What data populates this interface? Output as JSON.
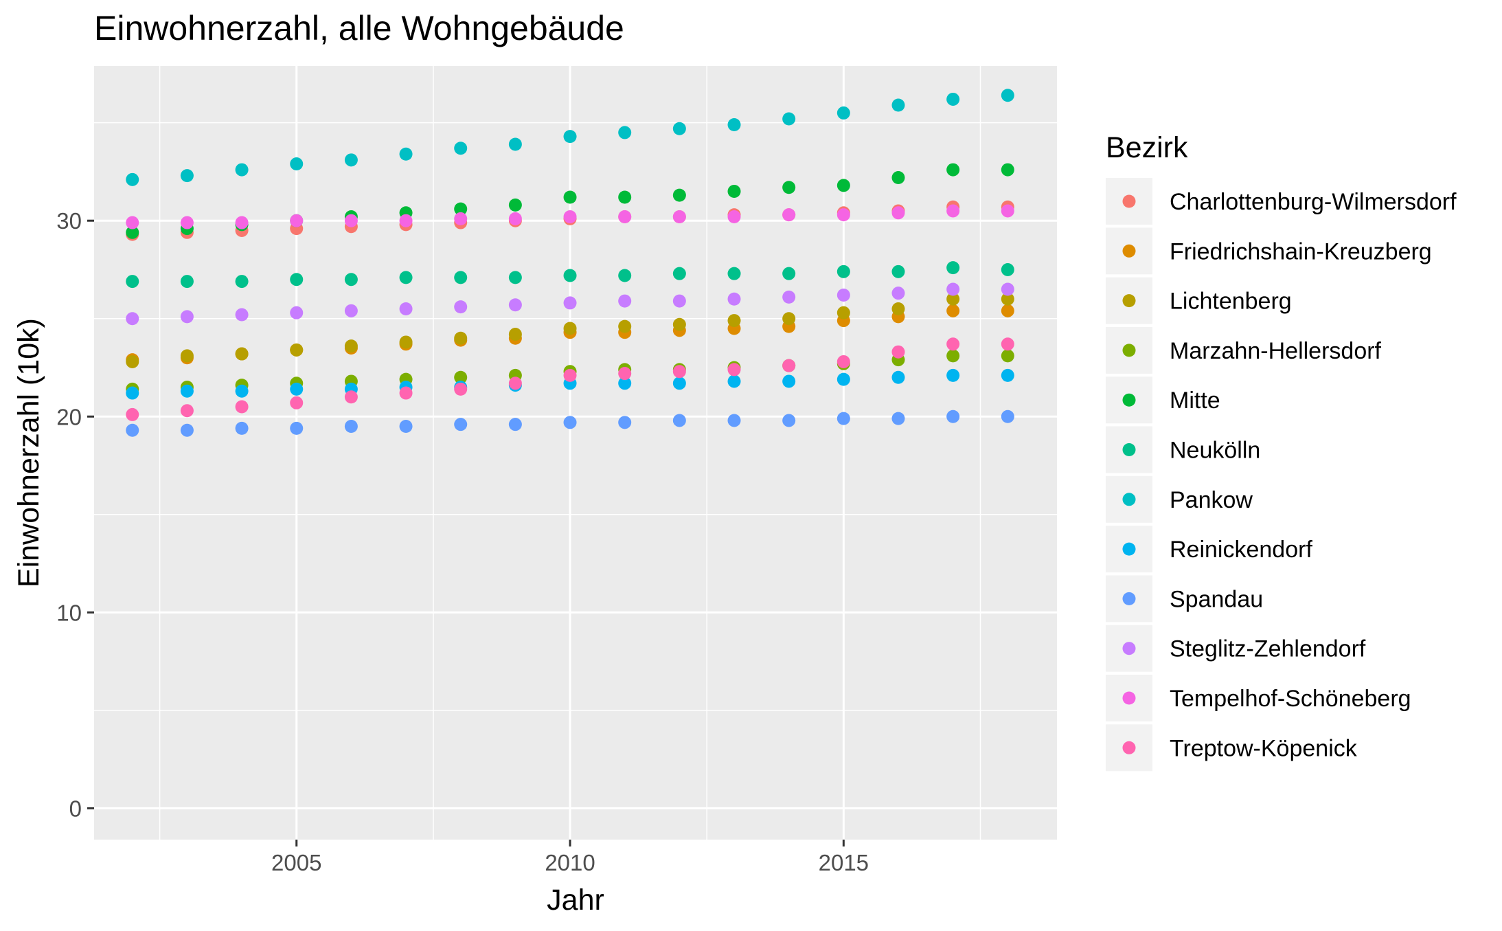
{
  "chart_data": {
    "type": "scatter",
    "title": "Einwohnerzahl, alle Wohngebäude",
    "xlabel": "Jahr",
    "ylabel": "Einwohnerzahl (10k)",
    "xlim": [
      2001.3,
      2018.9
    ],
    "ylim": [
      -1.6,
      37.9
    ],
    "x_major_ticks": [
      2005,
      2010,
      2015
    ],
    "x_minor_ticks": [
      2002.5,
      2007.5,
      2012.5,
      2017.5
    ],
    "y_major_ticks": [
      0,
      10,
      20,
      30
    ],
    "y_minor_ticks": [
      5,
      15,
      25,
      35
    ],
    "grid": true,
    "panel_background": "#EBEBEB",
    "legend": {
      "title": "Bezirk",
      "position": "right"
    },
    "x": [
      2002,
      2003,
      2004,
      2005,
      2006,
      2007,
      2008,
      2009,
      2010,
      2011,
      2012,
      2013,
      2014,
      2015,
      2016,
      2017,
      2018
    ],
    "series": [
      {
        "name": "Charlottenburg-Wilmersdorf",
        "color": "#F8766D",
        "values": [
          29.3,
          29.4,
          29.5,
          29.6,
          29.7,
          29.8,
          29.9,
          30.0,
          30.1,
          30.2,
          30.2,
          30.3,
          30.3,
          30.4,
          30.5,
          30.7,
          30.7
        ]
      },
      {
        "name": "Friedrichshain-Kreuzberg",
        "color": "#DE8C00",
        "values": [
          22.9,
          23.0,
          23.2,
          23.4,
          23.5,
          23.7,
          23.9,
          24.0,
          24.3,
          24.3,
          24.4,
          24.5,
          24.6,
          24.9,
          25.1,
          25.4,
          25.4
        ]
      },
      {
        "name": "Lichtenberg",
        "color": "#B79F00",
        "values": [
          22.8,
          23.1,
          23.2,
          23.4,
          23.6,
          23.8,
          24.0,
          24.2,
          24.5,
          24.6,
          24.7,
          24.9,
          25.0,
          25.3,
          25.5,
          26.0,
          26.0
        ]
      },
      {
        "name": "Marzahn-Hellersdorf",
        "color": "#7CAE00",
        "values": [
          21.4,
          21.5,
          21.6,
          21.7,
          21.8,
          21.9,
          22.0,
          22.1,
          22.3,
          22.4,
          22.4,
          22.5,
          22.6,
          22.7,
          22.9,
          23.1,
          23.1
        ]
      },
      {
        "name": "Mitte",
        "color": "#00BA38",
        "values": [
          29.4,
          29.6,
          29.8,
          30.0,
          30.2,
          30.4,
          30.6,
          30.8,
          31.2,
          31.2,
          31.3,
          31.5,
          31.7,
          31.8,
          32.2,
          32.6,
          32.6
        ]
      },
      {
        "name": "Neukölln",
        "color": "#00C08B",
        "values": [
          26.9,
          26.9,
          26.9,
          27.0,
          27.0,
          27.1,
          27.1,
          27.1,
          27.2,
          27.2,
          27.3,
          27.3,
          27.3,
          27.4,
          27.4,
          27.6,
          27.5
        ]
      },
      {
        "name": "Pankow",
        "color": "#00BFC4",
        "values": [
          32.1,
          32.3,
          32.6,
          32.9,
          33.1,
          33.4,
          33.7,
          33.9,
          34.3,
          34.5,
          34.7,
          34.9,
          35.2,
          35.5,
          35.9,
          36.2,
          36.4
        ]
      },
      {
        "name": "Reinickendorf",
        "color": "#00B4F0",
        "values": [
          21.2,
          21.3,
          21.3,
          21.4,
          21.4,
          21.5,
          21.5,
          21.6,
          21.7,
          21.7,
          21.7,
          21.8,
          21.8,
          21.9,
          22.0,
          22.1,
          22.1
        ]
      },
      {
        "name": "Spandau",
        "color": "#619CFF",
        "values": [
          19.3,
          19.3,
          19.4,
          19.4,
          19.5,
          19.5,
          19.6,
          19.6,
          19.7,
          19.7,
          19.8,
          19.8,
          19.8,
          19.9,
          19.9,
          20.0,
          20.0
        ]
      },
      {
        "name": "Steglitz-Zehlendorf",
        "color": "#C77CFF",
        "values": [
          25.0,
          25.1,
          25.2,
          25.3,
          25.4,
          25.5,
          25.6,
          25.7,
          25.8,
          25.9,
          25.9,
          26.0,
          26.1,
          26.2,
          26.3,
          26.5,
          26.5
        ]
      },
      {
        "name": "Tempelhof-Schöneberg",
        "color": "#F564E3",
        "values": [
          29.9,
          29.9,
          29.9,
          30.0,
          30.0,
          30.0,
          30.1,
          30.1,
          30.2,
          30.2,
          30.2,
          30.2,
          30.3,
          30.3,
          30.4,
          30.5,
          30.5
        ]
      },
      {
        "name": "Treptow-Köpenick",
        "color": "#FF64B0",
        "values": [
          20.1,
          20.3,
          20.5,
          20.7,
          21.0,
          21.2,
          21.4,
          21.7,
          22.1,
          22.2,
          22.3,
          22.4,
          22.6,
          22.8,
          23.3,
          23.7,
          23.7
        ]
      }
    ]
  }
}
